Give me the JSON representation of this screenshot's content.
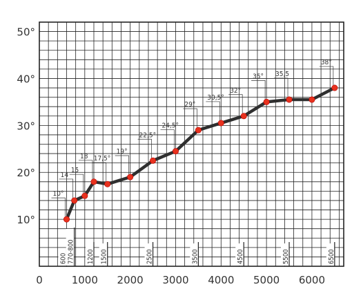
{
  "chart_data": {
    "type": "line",
    "title": "",
    "xlabel": "",
    "ylabel": "",
    "xlim": [
      0,
      6700
    ],
    "ylim": [
      0,
      52
    ],
    "x_ticks": [
      0,
      1000,
      2000,
      3000,
      4000,
      5000,
      6000
    ],
    "x_tick_labels": [
      "0",
      "1000",
      "2000",
      "3000",
      "4000",
      "5000",
      "6000"
    ],
    "y_ticks": [
      10,
      20,
      30,
      40,
      50
    ],
    "y_tick_labels": [
      "10°",
      "20°",
      "30°",
      "40°",
      "50°"
    ],
    "grid": true,
    "point_color": "#e8321e",
    "line_color": "#2f2f2f",
    "series": [
      {
        "x": [
          600,
          770,
          1000,
          1200,
          1500,
          2000,
          2500,
          3000,
          3500,
          4000,
          4500,
          5000,
          5500,
          6000,
          6500
        ],
        "y": [
          10,
          14,
          15,
          18,
          17.5,
          19,
          22.5,
          24.5,
          29,
          30.5,
          32,
          35,
          35.5,
          35.5,
          38
        ],
        "labels": [
          "10°",
          "14",
          "15",
          "18",
          "17,5°",
          "19°",
          "22,5°",
          "24,5°",
          "29°",
          "30,5°",
          "32°",
          "35°",
          "35,5",
          "",
          "38°"
        ]
      }
    ],
    "x_markers": [
      {
        "x": 600,
        "label": "600"
      },
      {
        "x": 770,
        "label": "770-800"
      },
      {
        "x": 1200,
        "label": "1200"
      },
      {
        "x": 1500,
        "label": "1500"
      },
      {
        "x": 2500,
        "label": "2500"
      },
      {
        "x": 3500,
        "label": "3500"
      },
      {
        "x": 4500,
        "label": "4500"
      },
      {
        "x": 5500,
        "label": "5500"
      },
      {
        "x": 6500,
        "label": "6500"
      }
    ]
  }
}
